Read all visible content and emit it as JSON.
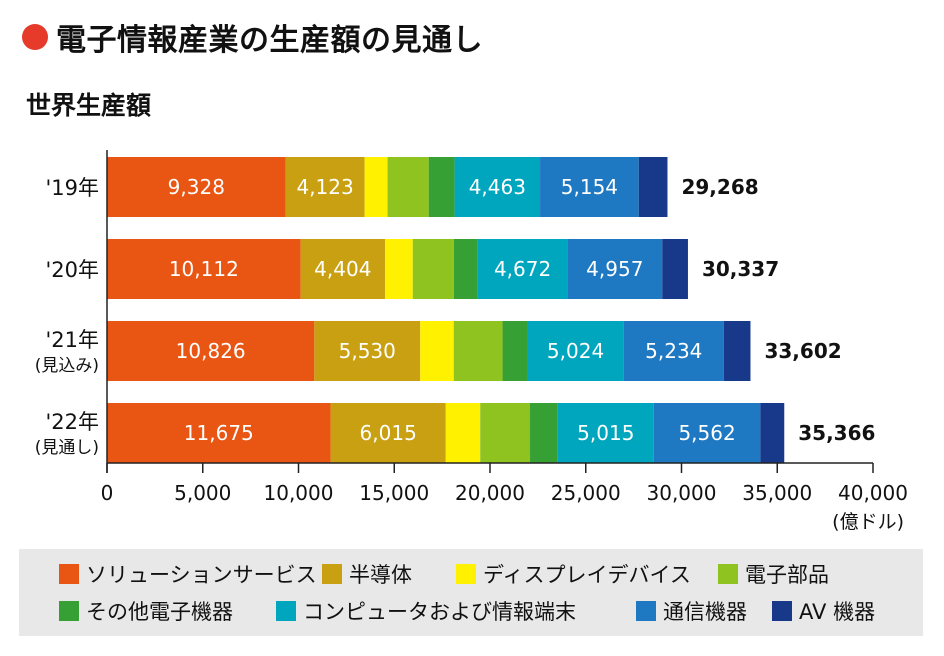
{
  "title": "電子情報産業の生産額の見通し",
  "colors": {
    "title_dot": "#e63a2b",
    "legend_bg": "#e8e8e8"
  },
  "chart_data": {
    "type": "bar",
    "orientation": "horizontal",
    "stacked": true,
    "title": "世界生産額",
    "xlabel": "(億ドル)",
    "ylabel": "",
    "xlim": [
      0,
      40000
    ],
    "x_ticks": [
      0,
      5000,
      10000,
      15000,
      20000,
      25000,
      30000,
      35000,
      40000
    ],
    "x_tick_labels": [
      "0",
      "5,000",
      "10,000",
      "15,000",
      "20,000",
      "25,000",
      "30,000",
      "35,000",
      "40,000"
    ],
    "grid": false,
    "legend_position": "bottom",
    "categories": [
      {
        "label": "'19年",
        "sublabel": ""
      },
      {
        "label": "'20年",
        "sublabel": ""
      },
      {
        "label": "'21年",
        "sublabel": "(見込み)"
      },
      {
        "label": "'22年",
        "sublabel": "(見通し)"
      }
    ],
    "series": [
      {
        "name": "ソリューションサービス",
        "color": "#e95513",
        "values": [
          9328,
          10112,
          10826,
          11675
        ],
        "labels": [
          "9,328",
          "10,112",
          "10,826",
          "11,675"
        ]
      },
      {
        "name": "半導体",
        "color": "#c9a012",
        "values": [
          4123,
          4404,
          5530,
          6015
        ],
        "labels": [
          "4,123",
          "4,404",
          "5,530",
          "6,015"
        ]
      },
      {
        "name": "ディスプレイデバイス",
        "color": "#fff100",
        "values": [
          1200,
          1450,
          1750,
          1800
        ],
        "labels": [
          "",
          "",
          "",
          ""
        ]
      },
      {
        "name": "電子部品",
        "color": "#8fc31f",
        "values": [
          2150,
          2150,
          2550,
          2600
        ],
        "labels": [
          "",
          "",
          "",
          ""
        ]
      },
      {
        "name": "その他電子機器",
        "color": "#36a035",
        "values": [
          1350,
          1250,
          1300,
          1450
        ],
        "labels": [
          "",
          "",
          "",
          ""
        ]
      },
      {
        "name": "コンピュータおよび情報端末",
        "color": "#00a6bd",
        "values": [
          4463,
          4672,
          5024,
          5015
        ],
        "labels": [
          "4,463",
          "4,672",
          "5,024",
          "5,015"
        ]
      },
      {
        "name": "通信機器",
        "color": "#1e78c2",
        "values": [
          5154,
          4957,
          5234,
          5562
        ],
        "labels": [
          "5,154",
          "4,957",
          "5,234",
          "5,562"
        ]
      },
      {
        "name": "AV 機器",
        "color": "#18398a",
        "values": [
          1500,
          1342,
          1388,
          1249
        ],
        "labels": [
          "",
          "",
          "",
          ""
        ]
      }
    ],
    "totals": [
      "29,268",
      "30,337",
      "33,602",
      "35,366"
    ]
  }
}
